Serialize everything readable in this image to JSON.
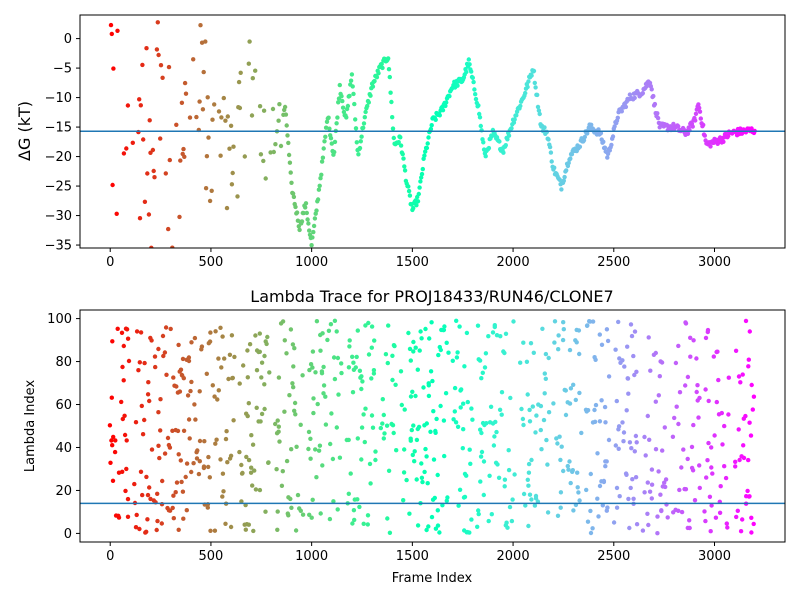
{
  "chart_data": [
    {
      "type": "scatter",
      "title": "",
      "xlabel": "",
      "ylabel": "ΔG (kT)",
      "xlim": [
        -150,
        3350
      ],
      "ylim": [
        -35.5,
        4
      ],
      "xticks": [
        0,
        500,
        1000,
        1500,
        2000,
        2500,
        3000
      ],
      "yticks": [
        0,
        -5,
        -10,
        -15,
        -20,
        -25,
        -30,
        -35
      ],
      "hline": -15.7,
      "hline_color": "#1f77b4",
      "colormap": "rainbow",
      "color_direction": "red at frame 0 to violet at frame 3200",
      "x_range": [
        0,
        3200
      ],
      "anchors": [
        [
          0,
          0
        ],
        [
          25,
          -22
        ],
        [
          50,
          -5
        ],
        [
          75,
          -18
        ],
        [
          100,
          -8
        ],
        [
          130,
          -24
        ],
        [
          160,
          -4
        ],
        [
          200,
          -22
        ],
        [
          240,
          -6
        ],
        [
          280,
          -18
        ],
        [
          320,
          -26
        ],
        [
          360,
          -12
        ],
        [
          400,
          -20
        ],
        [
          450,
          -3
        ],
        [
          500,
          -22
        ],
        [
          560,
          -12
        ],
        [
          600,
          -25
        ],
        [
          650,
          -15
        ],
        [
          700,
          -4
        ],
        [
          740,
          -10
        ],
        [
          780,
          -22
        ],
        [
          820,
          -16
        ],
        [
          870,
          -12
        ],
        [
          900,
          -25
        ],
        [
          940,
          -32
        ],
        [
          970,
          -28
        ],
        [
          1000,
          -35
        ],
        [
          1020,
          -30
        ],
        [
          1050,
          -22
        ],
        [
          1080,
          -13
        ],
        [
          1110,
          -20
        ],
        [
          1140,
          -8
        ],
        [
          1170,
          -14
        ],
        [
          1200,
          -6
        ],
        [
          1230,
          -20
        ],
        [
          1260,
          -14
        ],
        [
          1300,
          -8
        ],
        [
          1340,
          -5
        ],
        [
          1380,
          -3
        ],
        [
          1410,
          -18
        ],
        [
          1440,
          -17
        ],
        [
          1470,
          -24
        ],
        [
          1500,
          -29
        ],
        [
          1530,
          -27
        ],
        [
          1560,
          -20
        ],
        [
          1600,
          -14
        ],
        [
          1650,
          -12
        ],
        [
          1700,
          -8
        ],
        [
          1750,
          -7
        ],
        [
          1780,
          -4
        ],
        [
          1830,
          -12
        ],
        [
          1860,
          -20
        ],
        [
          1900,
          -16
        ],
        [
          1950,
          -19
        ],
        [
          2000,
          -14
        ],
        [
          2050,
          -10
        ],
        [
          2100,
          -5
        ],
        [
          2140,
          -15
        ],
        [
          2170,
          -16
        ],
        [
          2200,
          -22
        ],
        [
          2240,
          -25
        ],
        [
          2280,
          -20
        ],
        [
          2330,
          -18
        ],
        [
          2380,
          -15
        ],
        [
          2430,
          -16
        ],
        [
          2470,
          -20
        ],
        [
          2520,
          -13
        ],
        [
          2580,
          -10
        ],
        [
          2640,
          -9
        ],
        [
          2680,
          -7
        ],
        [
          2700,
          -11
        ],
        [
          2730,
          -15
        ],
        [
          2800,
          -15
        ],
        [
          2860,
          -16
        ],
        [
          2900,
          -14
        ],
        [
          2920,
          -11
        ],
        [
          2960,
          -18
        ],
        [
          3040,
          -17
        ],
        [
          3080,
          -16
        ],
        [
          3200,
          -15.5
        ]
      ],
      "noisy_until": 860
    },
    {
      "type": "scatter",
      "title": "Lambda Trace for PROJ18433/RUN46/CLONE7",
      "xlabel": "Frame Index",
      "ylabel": "Lambda Index",
      "xlim": [
        -150,
        3350
      ],
      "ylim": [
        -4,
        104
      ],
      "xticks": [
        0,
        500,
        1000,
        1500,
        2000,
        2500,
        3000
      ],
      "yticks": [
        0,
        20,
        40,
        60,
        80,
        100
      ],
      "hline": 14,
      "hline_color": "#1f77b4",
      "colormap": "rainbow",
      "color_direction": "red at frame 0 to violet at frame 3200",
      "x_range": [
        0,
        3200
      ],
      "y_range": [
        0,
        99
      ],
      "gaps": [
        [
          100,
          120
        ],
        [
          620,
          640
        ],
        [
          790,
          820
        ],
        [
          960,
          980
        ],
        [
          1150,
          1170
        ],
        [
          1320,
          1340
        ],
        [
          1420,
          1440
        ],
        [
          1680,
          1700
        ],
        [
          1800,
          1820
        ],
        [
          2010,
          2030
        ],
        [
          2180,
          2200
        ],
        [
          2340,
          2360
        ],
        [
          2480,
          2500
        ],
        [
          2620,
          2640
        ],
        [
          2770,
          2790
        ],
        [
          2930,
          2950
        ],
        [
          3080,
          3100
        ]
      ]
    }
  ]
}
